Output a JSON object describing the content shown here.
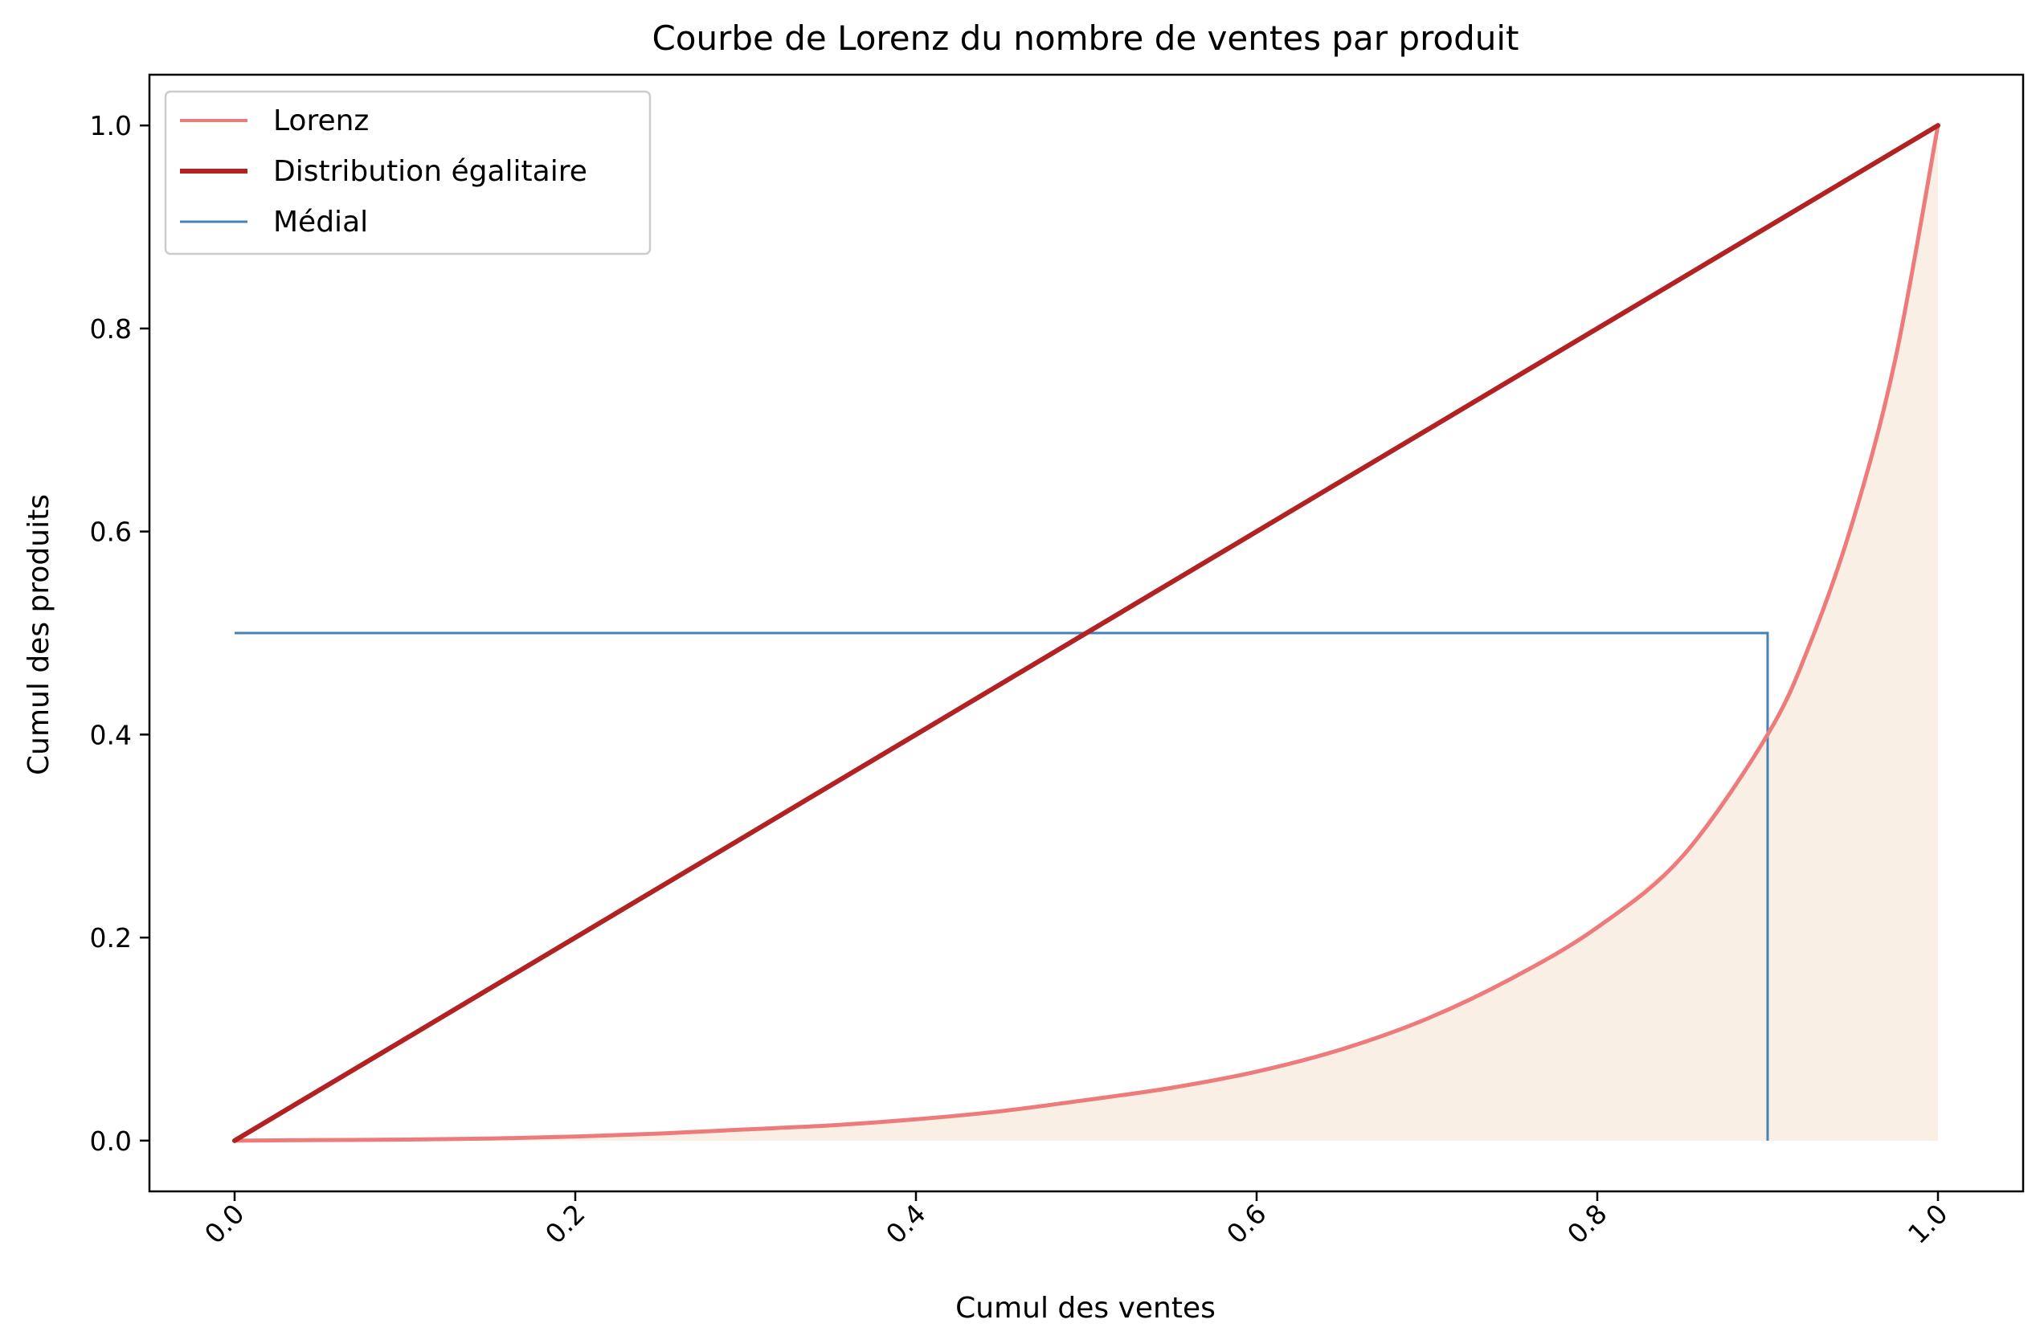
{
  "chart_data": {
    "type": "line",
    "title": "Courbe de Lorenz du nombre de ventes par produit",
    "xlabel": "Cumul des ventes",
    "ylabel": "Cumul des produits",
    "xlim": [
      -0.05,
      1.05
    ],
    "ylim": [
      -0.05,
      1.05
    ],
    "xticks": [
      0.0,
      0.2,
      0.4,
      0.6,
      0.8,
      1.0
    ],
    "xtick_labels": [
      "0.0",
      "0.2",
      "0.4",
      "0.6",
      "0.8",
      "1.0"
    ],
    "yticks": [
      0.0,
      0.2,
      0.4,
      0.6,
      0.8,
      1.0
    ],
    "ytick_labels": [
      "0.0",
      "0.2",
      "0.4",
      "0.6",
      "0.8",
      "1.0"
    ],
    "grid": false,
    "legend_position": "top-left",
    "fill_under": {
      "series": "Lorenz",
      "color": "#faefe4"
    },
    "series": [
      {
        "name": "Lorenz",
        "color": "#ee7b7b",
        "x": [
          0.0,
          0.05,
          0.1,
          0.15,
          0.2,
          0.25,
          0.3,
          0.35,
          0.4,
          0.45,
          0.5,
          0.55,
          0.6,
          0.65,
          0.7,
          0.75,
          0.8,
          0.85,
          0.9,
          0.925,
          0.95,
          0.975,
          1.0
        ],
        "y": [
          0.0,
          0.0005,
          0.001,
          0.002,
          0.004,
          0.007,
          0.011,
          0.015,
          0.021,
          0.029,
          0.04,
          0.052,
          0.068,
          0.09,
          0.12,
          0.16,
          0.21,
          0.28,
          0.4,
          0.49,
          0.61,
          0.77,
          1.0
        ]
      },
      {
        "name": "Distribution égalitaire",
        "color": "#b22222",
        "x": [
          0.0,
          1.0
        ],
        "y": [
          0.0,
          1.0
        ]
      },
      {
        "name": "Médial",
        "color": "#4682b4",
        "x": [
          0.0,
          0.9,
          0.9
        ],
        "y": [
          0.5,
          0.5,
          0.0
        ]
      }
    ]
  }
}
